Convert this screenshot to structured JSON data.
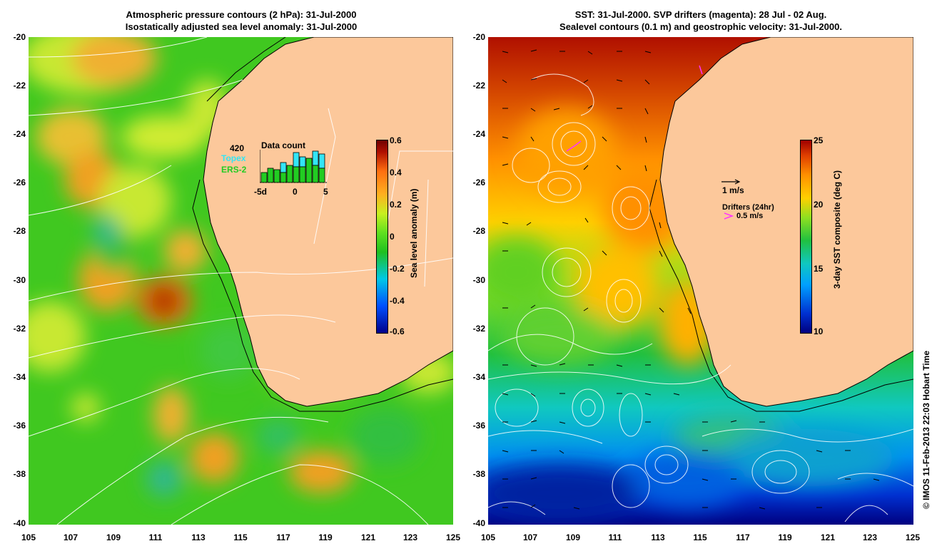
{
  "left_panel": {
    "title_line1": "Atmospheric pressure contours (2 hPa): 31-Jul-2000",
    "title_line2": "Isostatically adjusted sea level anomaly: 31-Jul-2000",
    "colorbar_label": "Sea level anomaly (m)",
    "colorbar_ticks": [
      "0.6",
      "0.4",
      "0.2",
      "0",
      "-0.2",
      "-0.4",
      "-0.6"
    ],
    "data_count": {
      "total": "420",
      "topex_label": "Topex",
      "ers2_label": "ERS-2",
      "title": "Data count",
      "axis_ticks": [
        "-5d",
        "0",
        "5"
      ],
      "topex_color": "#33e5f5",
      "ers2_color": "#22cc22"
    }
  },
  "right_panel": {
    "title_line1": "SST: 31-Jul-2000. SVP drifters (magenta): 28 Jul - 02 Aug.",
    "title_line2": "Sealevel contours (0.1 m) and geostrophic velocity: 31-Jul-2000.",
    "colorbar_label": "3-day SST composite (deg C)",
    "colorbar_ticks": [
      "25",
      "20",
      "15",
      "10"
    ],
    "velocity_key": "1 m/s",
    "drifters_label": "Drifters (24hr)",
    "drifters_speed": "0.5 m/s",
    "drifter_color": "#ff33ff"
  },
  "axes": {
    "y_ticks": [
      "-20",
      "-22",
      "-24",
      "-26",
      "-28",
      "-30",
      "-32",
      "-34",
      "-36",
      "-38",
      "-40"
    ],
    "x_ticks": [
      "105",
      "107",
      "109",
      "111",
      "113",
      "115",
      "117",
      "119",
      "121",
      "123",
      "125"
    ]
  },
  "copyright": "© IMOS 11-Feb-2013 22:03 Hobart Time",
  "colors": {
    "land": "#fcc89b",
    "sla_scale": [
      "#00008b",
      "#0050ff",
      "#00c8e6",
      "#20c020",
      "#60e020",
      "#c8f020",
      "#ffb020",
      "#ff7010",
      "#b01000",
      "#700000"
    ],
    "sst_scale": [
      "#000080",
      "#0030d0",
      "#00a0ff",
      "#10c8c0",
      "#20c040",
      "#90e020",
      "#ffd000",
      "#ff9000",
      "#e04000",
      "#a00000"
    ]
  }
}
